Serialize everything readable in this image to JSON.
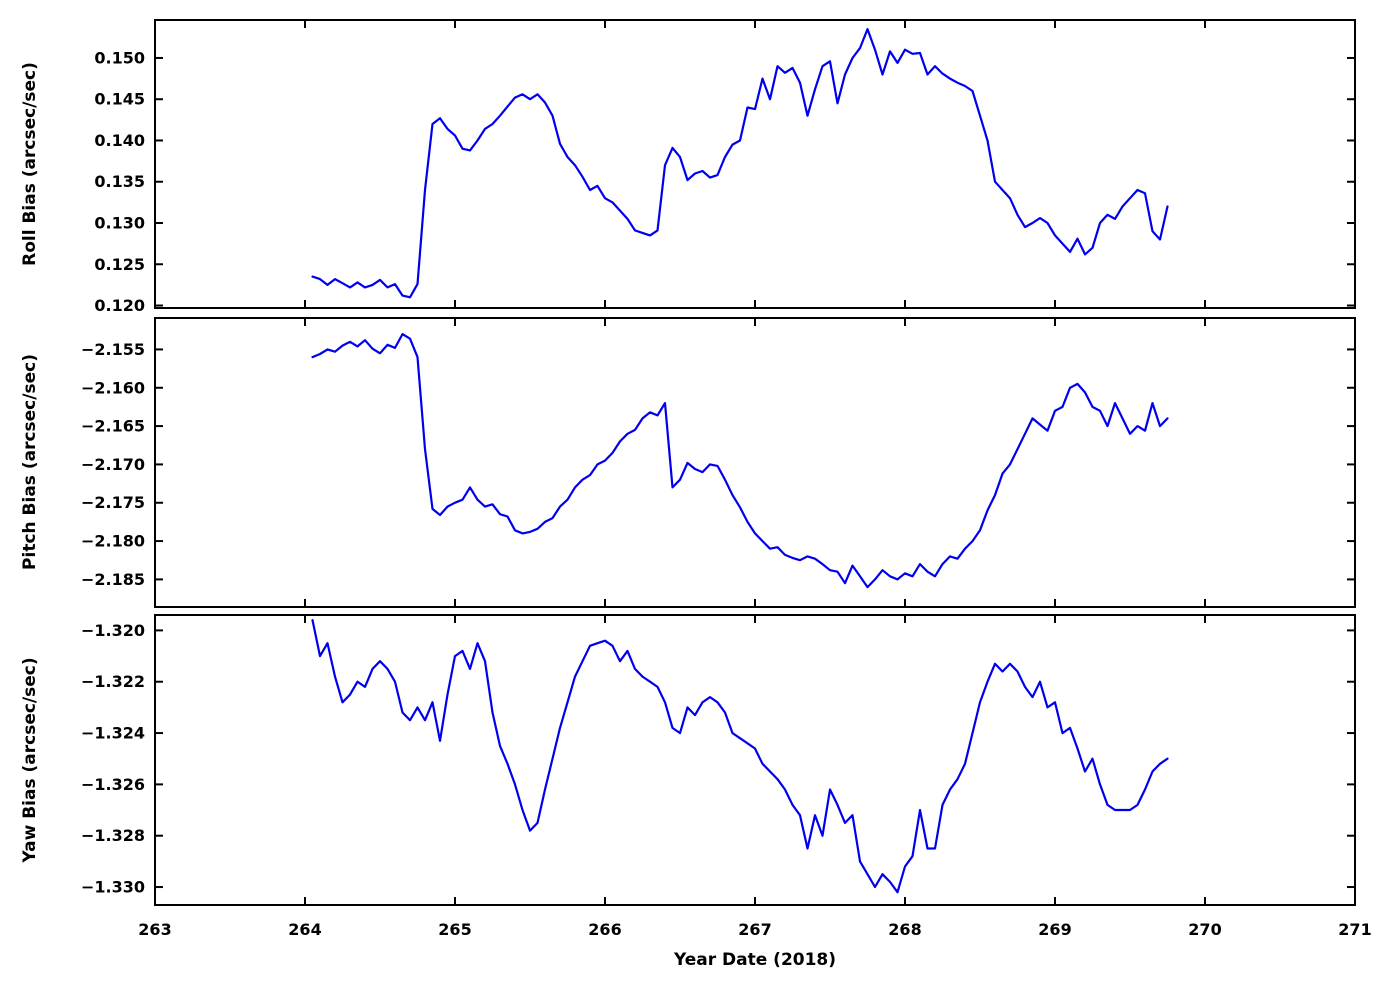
{
  "chart_data": {
    "type": "line",
    "title": "",
    "xlabel": "Year Date (2018)",
    "xlim": [
      263,
      271
    ],
    "x_tick_values": [
      263,
      264,
      265,
      266,
      267,
      268,
      269,
      270,
      271
    ],
    "x_tick_labels": [
      "263",
      "264",
      "265",
      "266",
      "267",
      "268",
      "269",
      "270",
      "271"
    ],
    "line_color": "#0000ee",
    "grid": false,
    "legend": "none",
    "x": [
      264.05,
      264.1,
      264.15,
      264.2,
      264.25,
      264.3,
      264.35,
      264.4,
      264.45,
      264.5,
      264.55,
      264.6,
      264.65,
      264.7,
      264.75,
      264.8,
      264.85,
      264.9,
      264.95,
      265.0,
      265.05,
      265.1,
      265.15,
      265.2,
      265.25,
      265.3,
      265.35,
      265.4,
      265.45,
      265.5,
      265.55,
      265.6,
      265.65,
      265.7,
      265.75,
      265.8,
      265.85,
      265.9,
      265.95,
      266.0,
      266.05,
      266.1,
      266.15,
      266.2,
      266.25,
      266.3,
      266.35,
      266.4,
      266.45,
      266.5,
      266.55,
      266.6,
      266.65,
      266.7,
      266.75,
      266.8,
      266.85,
      266.9,
      266.95,
      267.0,
      267.05,
      267.1,
      267.15,
      267.2,
      267.25,
      267.3,
      267.35,
      267.4,
      267.45,
      267.5,
      267.55,
      267.6,
      267.65,
      267.7,
      267.75,
      267.8,
      267.85,
      267.9,
      267.95,
      268.0,
      268.05,
      268.1,
      268.15,
      268.2,
      268.25,
      268.3,
      268.35,
      268.4,
      268.45,
      268.5,
      268.55,
      268.6,
      268.65,
      268.7,
      268.75,
      268.8,
      268.85,
      268.9,
      268.95,
      269.0,
      269.05,
      269.1,
      269.15,
      269.2,
      269.25,
      269.3,
      269.35,
      269.4,
      269.45,
      269.5,
      269.55,
      269.6,
      269.65,
      269.7,
      269.75
    ],
    "panels": [
      {
        "name": "roll",
        "ylabel": "Roll Bias (arcsec/sec)",
        "ylim": [
          0.1197,
          0.1546
        ],
        "y_tick_values": [
          0.12,
          0.125,
          0.13,
          0.135,
          0.14,
          0.145,
          0.15
        ],
        "y_tick_labels": [
          "0.120",
          "0.125",
          "0.130",
          "0.135",
          "0.140",
          "0.145",
          "0.150"
        ],
        "values": [
          0.1235,
          0.1232,
          0.1225,
          0.1232,
          0.1227,
          0.1222,
          0.1228,
          0.1222,
          0.1225,
          0.1231,
          0.1222,
          0.1226,
          0.1212,
          0.121,
          0.1226,
          0.134,
          0.142,
          0.1427,
          0.1414,
          0.1406,
          0.139,
          0.1388,
          0.14,
          0.1414,
          0.142,
          0.143,
          0.1441,
          0.1452,
          0.1456,
          0.145,
          0.1456,
          0.1446,
          0.143,
          0.1396,
          0.138,
          0.137,
          0.1356,
          0.134,
          0.1345,
          0.133,
          0.1325,
          0.1315,
          0.1305,
          0.1291,
          0.1288,
          0.1285,
          0.1291,
          0.137,
          0.1391,
          0.138,
          0.1352,
          0.136,
          0.1363,
          0.1355,
          0.1358,
          0.138,
          0.1395,
          0.14,
          0.144,
          0.1438,
          0.1475,
          0.145,
          0.149,
          0.1482,
          0.1488,
          0.147,
          0.143,
          0.1462,
          0.149,
          0.1496,
          0.1445,
          0.148,
          0.15,
          0.1512,
          0.1535,
          0.151,
          0.148,
          0.1508,
          0.1494,
          0.151,
          0.1505,
          0.1506,
          0.148,
          0.149,
          0.1481,
          0.1475,
          0.147,
          0.1466,
          0.146,
          0.143,
          0.14,
          0.135,
          0.134,
          0.133,
          0.131,
          0.1295,
          0.13,
          0.1306,
          0.13,
          0.1285,
          0.1275,
          0.1265,
          0.1281,
          0.1262,
          0.127,
          0.13,
          0.131,
          0.1305,
          0.132,
          0.133,
          0.134,
          0.1336,
          0.129,
          0.128,
          0.132
        ]
      },
      {
        "name": "pitch",
        "ylabel": "Pitch Bias (arcsec/sec)",
        "ylim": [
          -2.1886,
          -2.1509
        ],
        "y_tick_values": [
          -2.185,
          -2.18,
          -2.175,
          -2.17,
          -2.165,
          -2.16,
          -2.155
        ],
        "y_tick_labels": [
          "−2.185",
          "−2.180",
          "−2.175",
          "−2.170",
          "−2.165",
          "−2.160",
          "−2.155"
        ],
        "values": [
          -2.156,
          -2.1556,
          -2.155,
          -2.1553,
          -2.1545,
          -2.154,
          -2.1546,
          -2.1538,
          -2.1549,
          -2.1555,
          -2.1544,
          -2.1548,
          -2.153,
          -2.1536,
          -2.156,
          -2.168,
          -2.1758,
          -2.1766,
          -2.1755,
          -2.175,
          -2.1746,
          -2.173,
          -2.1746,
          -2.1755,
          -2.1752,
          -2.1765,
          -2.1768,
          -2.1786,
          -2.179,
          -2.1788,
          -2.1784,
          -2.1775,
          -2.177,
          -2.1755,
          -2.1746,
          -2.173,
          -2.172,
          -2.1714,
          -2.17,
          -2.1695,
          -2.1685,
          -2.167,
          -2.166,
          -2.1655,
          -2.164,
          -2.1632,
          -2.1636,
          -2.162,
          -2.173,
          -2.172,
          -2.1698,
          -2.1706,
          -2.171,
          -2.17,
          -2.1702,
          -2.172,
          -2.174,
          -2.1756,
          -2.1775,
          -2.179,
          -2.18,
          -2.181,
          -2.1808,
          -2.1818,
          -2.1822,
          -2.1825,
          -2.182,
          -2.1823,
          -2.183,
          -2.1838,
          -2.184,
          -2.1855,
          -2.1832,
          -2.1846,
          -2.186,
          -2.185,
          -2.1838,
          -2.1846,
          -2.185,
          -2.1842,
          -2.1846,
          -2.183,
          -2.184,
          -2.1846,
          -2.183,
          -2.182,
          -2.1823,
          -2.181,
          -2.18,
          -2.1786,
          -2.176,
          -2.174,
          -2.1712,
          -2.17,
          -2.168,
          -2.166,
          -2.164,
          -2.1648,
          -2.1656,
          -2.163,
          -2.1625,
          -2.16,
          -2.1595,
          -2.1606,
          -2.1625,
          -2.163,
          -2.165,
          -2.162,
          -2.164,
          -2.166,
          -2.165,
          -2.1656,
          -2.162,
          -2.165,
          -2.164
        ]
      },
      {
        "name": "yaw",
        "ylabel": "Yaw Bias (arcsec/sec)",
        "ylim": [
          -1.3307,
          -1.3194
        ],
        "y_tick_values": [
          -1.33,
          -1.328,
          -1.326,
          -1.324,
          -1.322,
          -1.32
        ],
        "y_tick_labels": [
          "−1.330",
          "−1.328",
          "−1.326",
          "−1.324",
          "−1.322",
          "−1.320"
        ],
        "values": [
          -1.3196,
          -1.321,
          -1.3205,
          -1.3218,
          -1.3228,
          -1.3225,
          -1.322,
          -1.3222,
          -1.3215,
          -1.3212,
          -1.3215,
          -1.322,
          -1.3232,
          -1.3235,
          -1.323,
          -1.3235,
          -1.3228,
          -1.3243,
          -1.3225,
          -1.321,
          -1.3208,
          -1.3215,
          -1.3205,
          -1.3212,
          -1.3232,
          -1.3245,
          -1.3252,
          -1.326,
          -1.327,
          -1.3278,
          -1.3275,
          -1.3262,
          -1.325,
          -1.3238,
          -1.3228,
          -1.3218,
          -1.3212,
          -1.3206,
          -1.3205,
          -1.3204,
          -1.3206,
          -1.3212,
          -1.3208,
          -1.3215,
          -1.3218,
          -1.322,
          -1.3222,
          -1.3228,
          -1.3238,
          -1.324,
          -1.323,
          -1.3233,
          -1.3228,
          -1.3226,
          -1.3228,
          -1.3232,
          -1.324,
          -1.3242,
          -1.3244,
          -1.3246,
          -1.3252,
          -1.3255,
          -1.3258,
          -1.3262,
          -1.3268,
          -1.3272,
          -1.3285,
          -1.3272,
          -1.328,
          -1.3262,
          -1.3268,
          -1.3275,
          -1.3272,
          -1.329,
          -1.3295,
          -1.33,
          -1.3295,
          -1.3298,
          -1.3302,
          -1.3292,
          -1.3288,
          -1.327,
          -1.3285,
          -1.3285,
          -1.3268,
          -1.3262,
          -1.3258,
          -1.3252,
          -1.324,
          -1.3228,
          -1.322,
          -1.3213,
          -1.3216,
          -1.3213,
          -1.3216,
          -1.3222,
          -1.3226,
          -1.322,
          -1.323,
          -1.3228,
          -1.324,
          -1.3238,
          -1.3246,
          -1.3255,
          -1.325,
          -1.326,
          -1.3268,
          -1.327,
          -1.327,
          -1.327,
          -1.3268,
          -1.3262,
          -1.3255,
          -1.3252,
          -1.325
        ]
      }
    ]
  }
}
